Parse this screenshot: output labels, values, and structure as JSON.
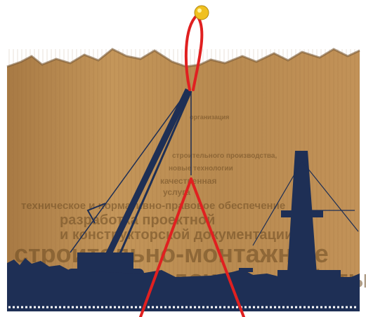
{
  "poster": {
    "text_lines": [
      "организация",
      "строительного производства,",
      "новые технологии",
      "качественная",
      "услуга",
      "техническое и нормативно-правовое обеспечение",
      "разработка проектной",
      "и конструкторской документации",
      "строительно-монтажные",
      "пусконаладочные работы"
    ]
  }
}
